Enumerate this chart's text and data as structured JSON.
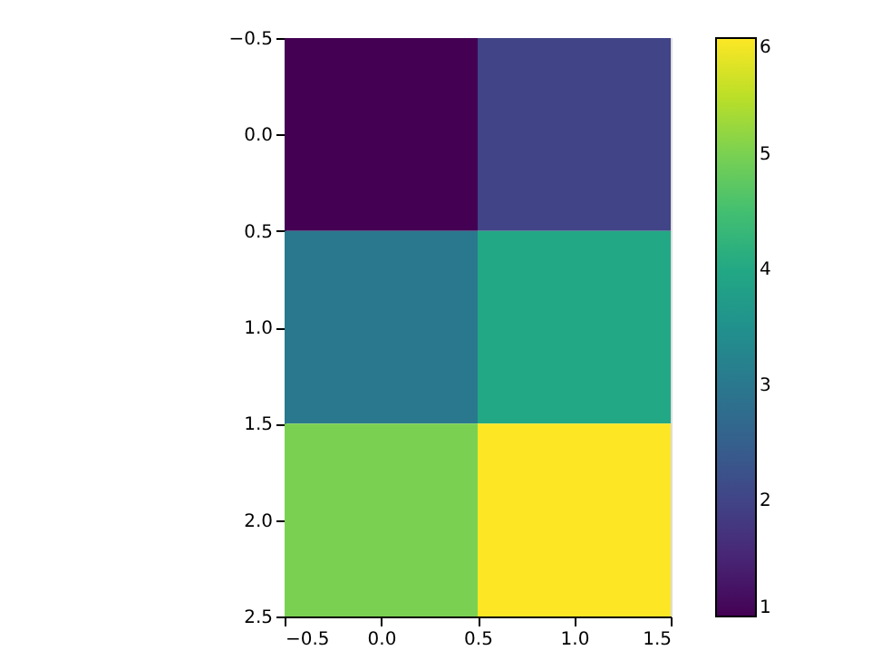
{
  "chart_data": {
    "type": "heatmap",
    "x": [
      0,
      1
    ],
    "y": [
      0,
      1,
      2
    ],
    "cells": [
      [
        1,
        2
      ],
      [
        3,
        4
      ],
      [
        5,
        6
      ]
    ],
    "xlim": [
      -0.5,
      1.5
    ],
    "ylim": [
      2.5,
      -0.5
    ],
    "xticks": [
      {
        "value": -0.5,
        "label": "−0.5"
      },
      {
        "value": 0,
        "label": "0.0"
      },
      {
        "value": 0.5,
        "label": "0.5"
      },
      {
        "value": 1,
        "label": "1.0"
      },
      {
        "value": 1.5,
        "label": "1.5"
      }
    ],
    "yticks": [
      {
        "value": -0.5,
        "label": "−0.5"
      },
      {
        "value": 0,
        "label": "0.0"
      },
      {
        "value": 0.5,
        "label": "0.5"
      },
      {
        "value": 1,
        "label": "1.0"
      },
      {
        "value": 1.5,
        "label": "1.5"
      },
      {
        "value": 2,
        "label": "2.0"
      },
      {
        "value": 2.5,
        "label": "2.5"
      }
    ],
    "clim": [
      1,
      6
    ],
    "cticks": [
      1,
      2,
      3,
      4,
      5,
      6
    ],
    "grid": false
  }
}
